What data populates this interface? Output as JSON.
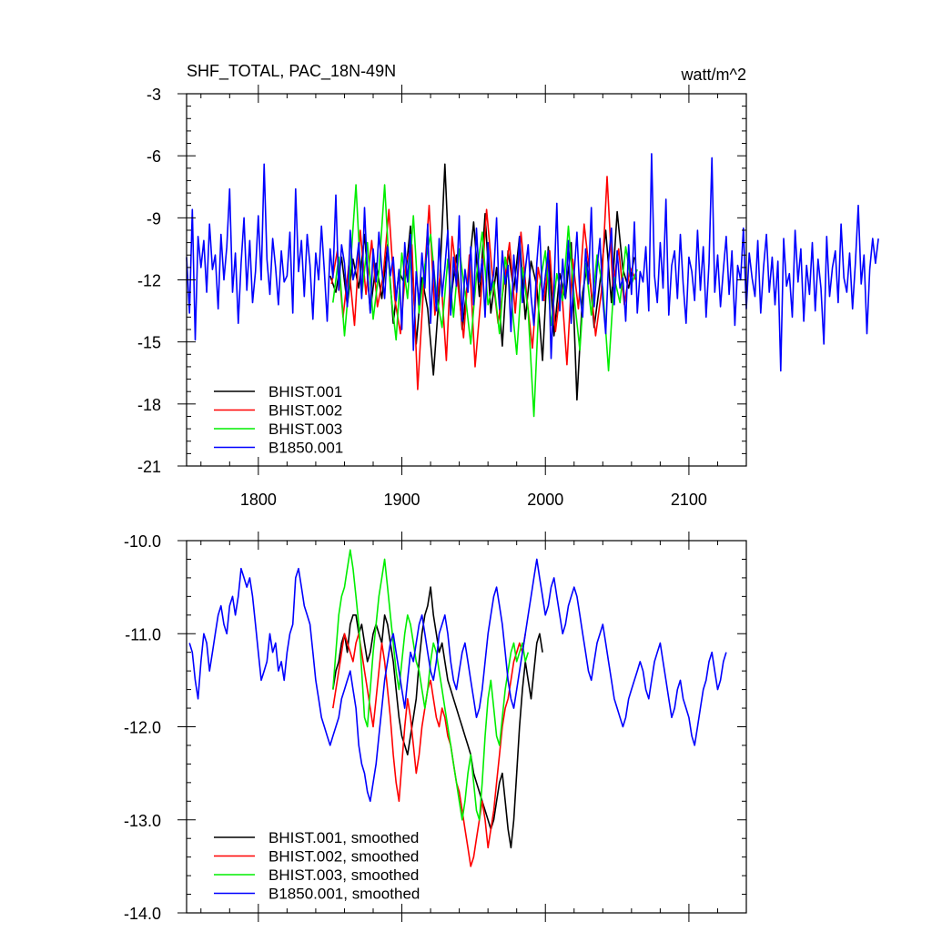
{
  "chart_data": [
    {
      "type": "line",
      "title": "SHF_TOTAL, PAC_18N-49N",
      "units": "watt/m^2",
      "xlim": [
        1750,
        2140
      ],
      "ylim": [
        -21,
        -3
      ],
      "x_ticks": [
        1800,
        1900,
        2000,
        2100
      ],
      "x_tick_labels": [
        "1800",
        "1900",
        "2000",
        "2100"
      ],
      "y_ticks": [
        -21,
        -18,
        -15,
        -12,
        -9,
        -6,
        -3
      ],
      "y_tick_labels": [
        "-21",
        "-18",
        "-15",
        "-12",
        "-9",
        "-6",
        "-3"
      ],
      "legend_position": "bottom-left",
      "series": [
        {
          "name": "BHIST.001",
          "color": "#000000",
          "x_start": 1850,
          "x_step": 4,
          "values": [
            -11.8,
            -12.6,
            -10.9,
            -13.2,
            -11.0,
            -12.4,
            -9.8,
            -13.5,
            -11.2,
            -12.9,
            -10.3,
            -14.1,
            -11.6,
            -12.2,
            -9.4,
            -15.1,
            -11.9,
            -13.4,
            -16.6,
            -12.7,
            -6.4,
            -13.0,
            -10.8,
            -14.4,
            -12.0,
            -9.2,
            -12.8,
            -8.8,
            -13.6,
            -11.4,
            -15.2,
            -10.6,
            -12.5,
            -9.9,
            -13.9,
            -11.1,
            -12.3,
            -15.9,
            -10.4,
            -14.7,
            -11.7,
            -12.9,
            -10.2,
            -17.8,
            -12.6,
            -11.0,
            -14.3,
            -12.1,
            -9.6,
            -13.1,
            -8.7,
            -11.5,
            -12.4,
            -10.9
          ]
        },
        {
          "name": "BHIST.002",
          "color": "#ff0000",
          "x_start": 1851,
          "x_step": 4,
          "values": [
            -12.2,
            -10.6,
            -13.8,
            -11.3,
            -14.2,
            -9.6,
            -12.7,
            -10.1,
            -13.3,
            -11.8,
            -8.6,
            -12.9,
            -14.6,
            -11.1,
            -10.3,
            -17.3,
            -12.5,
            -8.4,
            -13.7,
            -11.6,
            -15.9,
            -9.9,
            -12.2,
            -14.8,
            -10.8,
            -16.2,
            -12.9,
            -8.6,
            -11.7,
            -14.1,
            -12.3,
            -10.2,
            -13.6,
            -9.7,
            -12.8,
            -15.3,
            -11.4,
            -13.0,
            -10.6,
            -14.5,
            -12.1,
            -16.1,
            -11.0,
            -13.4,
            -9.3,
            -11.8,
            -14.7,
            -12.6,
            -7.0,
            -12.3,
            -10.5,
            -13.2,
            -11.4,
            -12.0
          ]
        },
        {
          "name": "BHIST.003",
          "color": "#00ee00",
          "x_start": 1852,
          "x_step": 4,
          "values": [
            -13.1,
            -10.9,
            -14.7,
            -11.5,
            -7.4,
            -12.8,
            -10.2,
            -13.9,
            -11.6,
            -7.4,
            -12.4,
            -14.9,
            -10.7,
            -12.9,
            -8.9,
            -13.6,
            -11.3,
            -9.8,
            -12.7,
            -14.3,
            -11.0,
            -13.8,
            -10.5,
            -12.6,
            -15.1,
            -11.8,
            -9.7,
            -13.2,
            -12.1,
            -14.6,
            -10.9,
            -12.7,
            -15.6,
            -11.4,
            -13.5,
            -18.6,
            -12.3,
            -10.6,
            -14.2,
            -11.7,
            -13.0,
            -9.4,
            -12.8,
            -15.4,
            -11.2,
            -13.7,
            -10.8,
            -12.4,
            -16.4,
            -11.9,
            -13.1,
            -10.4,
            -12.2,
            -11.5
          ]
        },
        {
          "name": "B1850.001",
          "color": "#0000ff",
          "x_start": 1750,
          "x_step": 2,
          "values": [
            -10.9,
            -13.6,
            -8.6,
            -14.9,
            -9.9,
            -11.4,
            -10.1,
            -12.6,
            -9.3,
            -11.5,
            -10.8,
            -13.4,
            -9.8,
            -12.0,
            -10.4,
            -7.6,
            -12.6,
            -10.7,
            -14.1,
            -11.2,
            -9.0,
            -12.5,
            -10.1,
            -13.1,
            -11.6,
            -8.9,
            -12.0,
            -6.4,
            -11.0,
            -12.7,
            -10.0,
            -11.4,
            -13.2,
            -10.6,
            -12.1,
            -11.8,
            -9.7,
            -13.6,
            -7.6,
            -11.6,
            -10.1,
            -12.8,
            -9.8,
            -11.3,
            -13.9,
            -10.7,
            -12.0,
            -9.4,
            -11.6,
            -14.0,
            -10.5,
            -11.9,
            -7.9,
            -12.5,
            -10.3,
            -11.2,
            -13.3,
            -9.6,
            -12.0,
            -11.4,
            -10.2,
            -12.9,
            -8.5,
            -11.7,
            -13.6,
            -10.5,
            -12.1,
            -9.7,
            -11.5,
            -12.9,
            -10.4,
            -11.8,
            -10.9,
            -13.0,
            -11.5,
            -14.4,
            -10.2,
            -12.1,
            -9.8,
            -15.4,
            -11.6,
            -13.2,
            -10.7,
            -12.4,
            -9.3,
            -14.1,
            -11.1,
            -13.5,
            -10.0,
            -12.8,
            -11.4,
            -9.6,
            -13.7,
            -10.9,
            -12.3,
            -8.9,
            -14.0,
            -11.5,
            -12.6,
            -10.4,
            -13.2,
            -9.5,
            -12.1,
            -11.0,
            -13.8,
            -10.2,
            -12.5,
            -11.7,
            -9.0,
            -13.4,
            -10.6,
            -12.2,
            -11.3,
            -14.5,
            -10.8,
            -12.6,
            -9.9,
            -13.1,
            -11.5,
            -10.3,
            -12.8,
            -14.2,
            -11.2,
            -9.4,
            -13.0,
            -11.8,
            -10.6,
            -15.8,
            -12.4,
            -8.3,
            -13.5,
            -11.0,
            -12.9,
            -10.1,
            -14.1,
            -11.7,
            -9.7,
            -12.7,
            -13.8,
            -10.5,
            -12.2,
            -8.5,
            -13.3,
            -11.4,
            -10.0,
            -12.9,
            -14.6,
            -11.1,
            -9.5,
            -13.2,
            -10.6,
            -12.4,
            -11.9,
            -14.0,
            -10.3,
            -12.7,
            -9.2,
            -13.6,
            -11.6,
            -12.1,
            -10.4,
            -13.5,
            -5.9,
            -11.8,
            -13.1,
            -10.2,
            -12.4,
            -8.1,
            -13.7,
            -11.3,
            -10.6,
            -12.9,
            -9.8,
            -12.2,
            -14.1,
            -10.9,
            -11.6,
            -13.0,
            -9.6,
            -12.5,
            -10.4,
            -13.8,
            -11.2,
            -6.1,
            -12.6,
            -10.8,
            -13.3,
            -11.5,
            -9.9,
            -12.7,
            -10.6,
            -14.2,
            -11.3,
            -12.0,
            -9.5,
            -13.4,
            -10.7,
            -11.9,
            -12.8,
            -10.1,
            -13.6,
            -11.4,
            -9.8,
            -12.6,
            -10.9,
            -13.2,
            -11.1,
            -16.4,
            -10.0,
            -12.3,
            -11.7,
            -13.8,
            -9.6,
            -12.1,
            -10.5,
            -14.0,
            -11.3,
            -12.7,
            -10.2,
            -13.5,
            -11.0,
            -12.4,
            -15.1,
            -9.9,
            -12.8,
            -11.4,
            -10.6,
            -13.1,
            -9.3,
            -11.9,
            -12.6,
            -10.7,
            -13.4,
            -11.2,
            -8.4,
            -12.2,
            -10.8,
            -14.6,
            -11.5,
            -10.0,
            -11.2,
            -10.0
          ]
        }
      ]
    },
    {
      "type": "line",
      "title": "",
      "xlim": [
        1750,
        2140
      ],
      "ylim": [
        -14.0,
        -10.0
      ],
      "x_ticks": [
        1800,
        1900,
        2000,
        2100
      ],
      "y_ticks": [
        -14.0,
        -13.0,
        -12.0,
        -11.0,
        -10.0
      ],
      "y_tick_labels": [
        "-14.0",
        "-13.0",
        "-12.0",
        "-11.0",
        "-10.0"
      ],
      "legend_position": "bottom-left",
      "series": [
        {
          "name": "BHIST.001, smoothed",
          "color": "#000000",
          "x_start": 1852,
          "x_step": 2,
          "values": [
            -11.6,
            -11.4,
            -11.3,
            -11.1,
            -11.0,
            -11.2,
            -10.9,
            -10.8,
            -10.8,
            -11.0,
            -10.9,
            -11.1,
            -11.3,
            -11.2,
            -11.0,
            -10.9,
            -11.0,
            -11.1,
            -10.8,
            -10.9,
            -11.1,
            -11.3,
            -11.6,
            -11.9,
            -12.1,
            -12.2,
            -12.3,
            -12.1,
            -11.9,
            -11.7,
            -11.3,
            -11.0,
            -10.8,
            -10.7,
            -10.5,
            -10.8,
            -11.0,
            -11.2,
            -11.1,
            -11.3,
            -11.5,
            -11.6,
            -11.7,
            -11.8,
            -11.9,
            -12.0,
            -12.1,
            -12.2,
            -12.3,
            -12.5,
            -12.6,
            -12.7,
            -12.8,
            -12.9,
            -13.0,
            -13.1,
            -13.0,
            -12.8,
            -12.6,
            -12.5,
            -12.8,
            -13.1,
            -13.3,
            -13.0,
            -12.5,
            -12.0,
            -11.6,
            -11.3,
            -11.5,
            -11.7,
            -11.4,
            -11.1,
            -11.0,
            -11.2
          ]
        },
        {
          "name": "BHIST.002, smoothed",
          "color": "#ff0000",
          "x_start": 1852,
          "x_step": 2,
          "values": [
            -11.8,
            -11.6,
            -11.4,
            -11.2,
            -11.0,
            -11.1,
            -11.2,
            -11.3,
            -11.1,
            -11.0,
            -11.2,
            -11.4,
            -11.6,
            -11.8,
            -12.0,
            -11.7,
            -11.4,
            -11.1,
            -11.3,
            -11.6,
            -11.9,
            -12.3,
            -12.6,
            -12.8,
            -12.4,
            -12.0,
            -11.7,
            -11.9,
            -12.2,
            -12.5,
            -12.3,
            -12.0,
            -11.8,
            -11.6,
            -11.5,
            -11.7,
            -11.9,
            -12.0,
            -11.8,
            -11.9,
            -12.1,
            -12.2,
            -12.4,
            -12.6,
            -12.7,
            -12.9,
            -13.1,
            -13.3,
            -13.5,
            -13.4,
            -13.2,
            -13.0,
            -12.8,
            -13.0,
            -13.3,
            -13.1,
            -12.9,
            -12.6,
            -12.3,
            -12.0,
            -11.8,
            -11.7,
            -11.5,
            -11.3,
            -11.2,
            -11.1,
            -11.2,
            -11.0
          ]
        },
        {
          "name": "BHIST.003, smoothed",
          "color": "#00ee00",
          "x_start": 1852,
          "x_step": 2,
          "values": [
            -11.6,
            -11.2,
            -10.8,
            -10.6,
            -10.5,
            -10.3,
            -10.1,
            -10.3,
            -10.6,
            -10.9,
            -11.4,
            -11.9,
            -12.0,
            -11.6,
            -11.2,
            -10.9,
            -10.6,
            -10.4,
            -10.2,
            -10.5,
            -10.8,
            -11.1,
            -11.4,
            -11.6,
            -11.3,
            -11.0,
            -10.8,
            -10.9,
            -11.1,
            -11.3,
            -11.4,
            -11.6,
            -11.8,
            -11.6,
            -11.3,
            -11.1,
            -11.2,
            -11.4,
            -11.6,
            -11.8,
            -12.0,
            -12.2,
            -12.4,
            -12.6,
            -12.8,
            -13.0,
            -12.8,
            -12.5,
            -12.3,
            -12.6,
            -12.9,
            -13.0,
            -12.6,
            -12.1,
            -11.7,
            -11.5,
            -11.8,
            -12.1,
            -12.2,
            -11.9,
            -11.6,
            -11.4,
            -11.2,
            -11.1,
            -11.3,
            -11.2,
            -11.1,
            -11.3,
            -11.2
          ]
        },
        {
          "name": "B1850.001, smoothed",
          "color": "#0000ff",
          "x_start": 1752,
          "x_step": 2,
          "values": [
            -11.1,
            -11.2,
            -11.5,
            -11.7,
            -11.3,
            -11.0,
            -11.1,
            -11.4,
            -11.2,
            -11.0,
            -10.8,
            -10.7,
            -10.9,
            -11.0,
            -10.7,
            -10.6,
            -10.8,
            -10.6,
            -10.3,
            -10.4,
            -10.5,
            -10.4,
            -10.6,
            -10.9,
            -11.2,
            -11.5,
            -11.4,
            -11.3,
            -11.0,
            -11.2,
            -11.1,
            -11.4,
            -11.3,
            -11.5,
            -11.2,
            -11.0,
            -10.9,
            -10.4,
            -10.3,
            -10.5,
            -10.7,
            -10.8,
            -10.9,
            -11.2,
            -11.5,
            -11.7,
            -11.9,
            -12.0,
            -12.1,
            -12.2,
            -12.1,
            -12.0,
            -11.9,
            -11.7,
            -11.6,
            -11.5,
            -11.4,
            -11.6,
            -11.8,
            -12.2,
            -12.4,
            -12.5,
            -12.7,
            -12.8,
            -12.6,
            -12.4,
            -12.1,
            -11.8,
            -11.5,
            -11.3,
            -11.1,
            -11.0,
            -11.2,
            -11.4,
            -11.6,
            -11.8,
            -11.5,
            -11.2,
            -11.3,
            -11.1,
            -10.9,
            -10.8,
            -11.0,
            -11.2,
            -11.4,
            -11.5,
            -11.3,
            -11.0,
            -10.9,
            -10.8,
            -11.0,
            -11.3,
            -11.5,
            -11.6,
            -11.4,
            -11.2,
            -11.1,
            -11.3,
            -11.5,
            -11.7,
            -11.9,
            -11.8,
            -11.6,
            -11.3,
            -11.0,
            -10.8,
            -10.6,
            -10.5,
            -10.7,
            -10.9,
            -11.2,
            -11.5,
            -11.7,
            -11.8,
            -11.6,
            -11.4,
            -11.2,
            -11.0,
            -10.8,
            -10.6,
            -10.4,
            -10.2,
            -10.4,
            -10.6,
            -10.8,
            -10.7,
            -10.5,
            -10.4,
            -10.6,
            -10.8,
            -11.0,
            -10.9,
            -10.7,
            -10.6,
            -10.5,
            -10.6,
            -10.8,
            -11.0,
            -11.2,
            -11.4,
            -11.5,
            -11.3,
            -11.1,
            -11.0,
            -10.9,
            -11.1,
            -11.3,
            -11.5,
            -11.7,
            -11.8,
            -11.9,
            -12.0,
            -11.9,
            -11.7,
            -11.6,
            -11.5,
            -11.4,
            -11.3,
            -11.4,
            -11.6,
            -11.7,
            -11.5,
            -11.3,
            -11.2,
            -11.1,
            -11.3,
            -11.5,
            -11.7,
            -11.9,
            -11.8,
            -11.6,
            -11.5,
            -11.7,
            -11.8,
            -11.9,
            -12.1,
            -12.2,
            -12.0,
            -11.8,
            -11.6,
            -11.5,
            -11.3,
            -11.2,
            -11.4,
            -11.6,
            -11.5,
            -11.3,
            -11.2
          ]
        }
      ]
    }
  ]
}
